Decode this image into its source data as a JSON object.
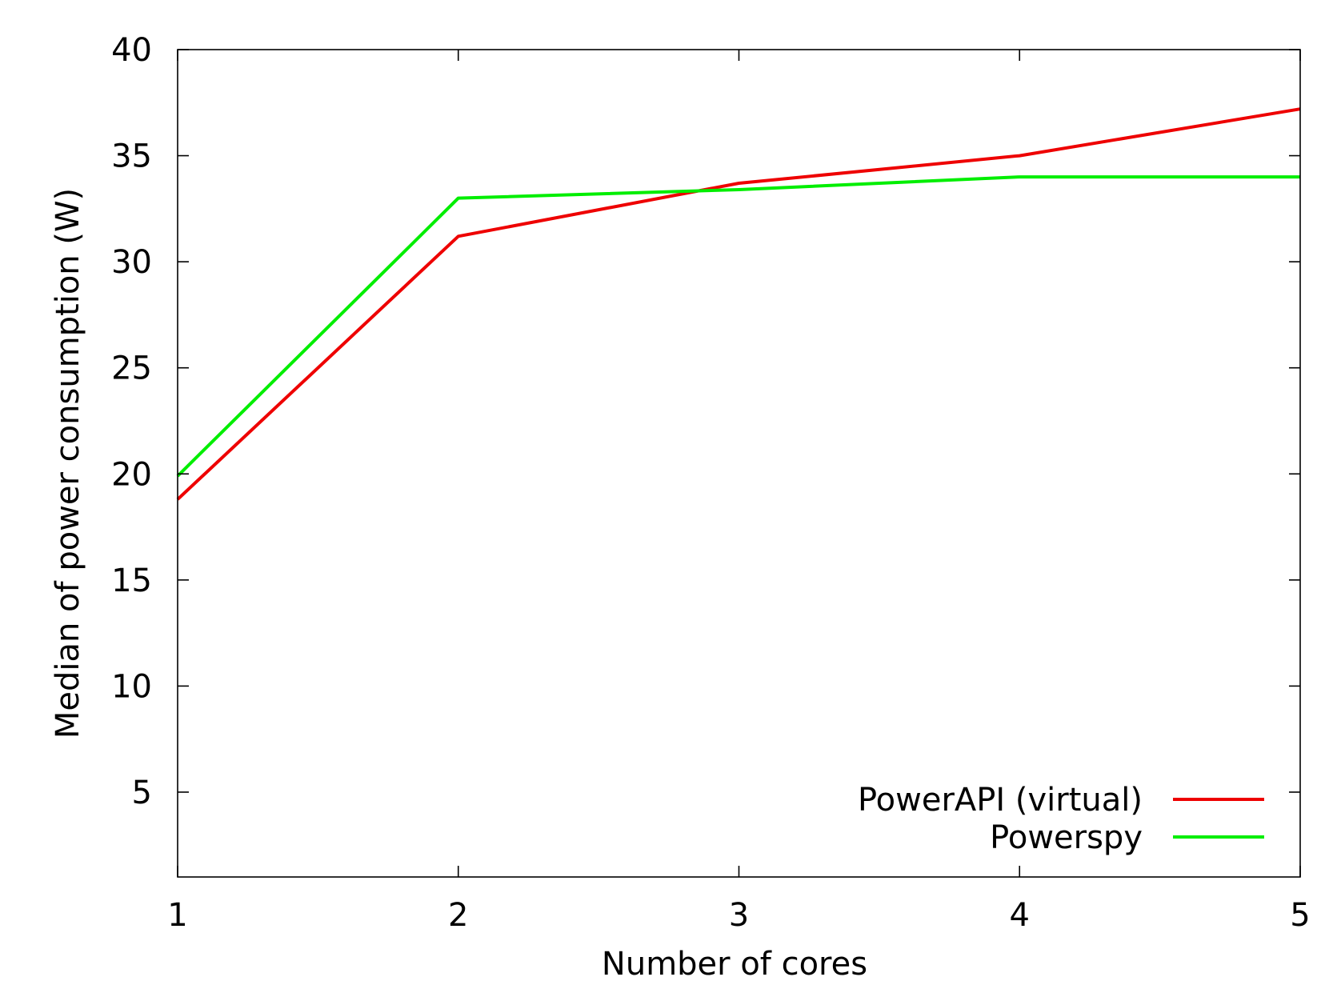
{
  "chart_data": {
    "type": "line",
    "title": "",
    "xlabel": "Number of cores",
    "ylabel": "Median of power consumption (W)",
    "xlim": [
      1,
      5
    ],
    "ylim": [
      1,
      40
    ],
    "x_ticks": [
      1,
      2,
      3,
      4,
      5
    ],
    "y_ticks": [
      5,
      10,
      15,
      20,
      25,
      30,
      35,
      40
    ],
    "grid": false,
    "legend_position": "bottom-right",
    "x": [
      1,
      2,
      3,
      4,
      5
    ],
    "series": [
      {
        "name": "PowerAPI (virtual)",
        "color": "#ee0000",
        "values": [
          18.8,
          31.2,
          33.7,
          35.0,
          37.2
        ]
      },
      {
        "name": "Powerspy",
        "color": "#00ee00",
        "values": [
          19.9,
          33.0,
          33.4,
          34.0,
          34.0
        ]
      }
    ]
  }
}
